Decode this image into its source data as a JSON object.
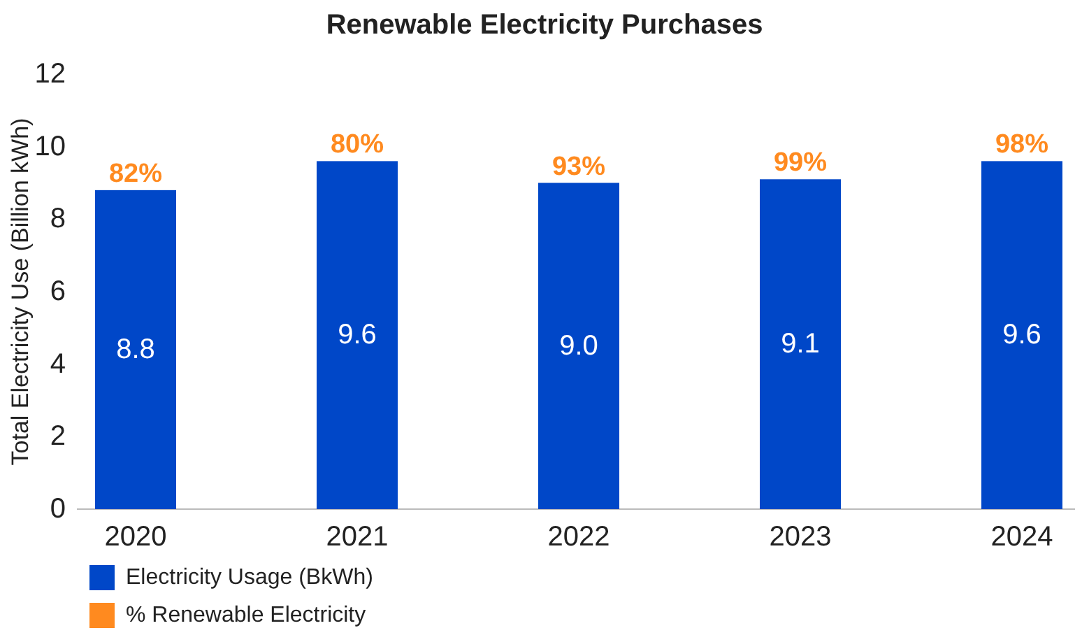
{
  "chart_data": {
    "type": "bar",
    "title": "Renewable Electricity Purchases",
    "ylabel": "Total Electricity Use (Billion kWh)",
    "categories": [
      "2020",
      "2021",
      "2022",
      "2023",
      "2024"
    ],
    "series": [
      {
        "name": "Electricity Usage (BkWh)",
        "color": "#0047c8",
        "values": [
          8.8,
          9.6,
          9.0,
          9.1,
          9.6
        ],
        "value_labels": [
          "8.8",
          "9.6",
          "9.0",
          "9.1",
          "9.6"
        ]
      },
      {
        "name": "% Renewable Electricity",
        "color": "#ff8a1f",
        "values": [
          null,
          null,
          null,
          null,
          null
        ]
      }
    ],
    "annotations": [
      {
        "text": "82%",
        "x": "2020",
        "y": 8.8
      },
      {
        "text": "80%",
        "x": "2021",
        "y": 9.6
      },
      {
        "text": "93%",
        "x": "2022",
        "y": 9.0
      },
      {
        "text": "99%",
        "x": "2023",
        "y": 9.1
      },
      {
        "text": "98%",
        "x": "2024",
        "y": 9.6
      }
    ],
    "ylim": [
      0,
      12
    ],
    "yticks": [
      0,
      2,
      4,
      6,
      8,
      10,
      12
    ],
    "grid": false,
    "legend": "bottom left"
  }
}
